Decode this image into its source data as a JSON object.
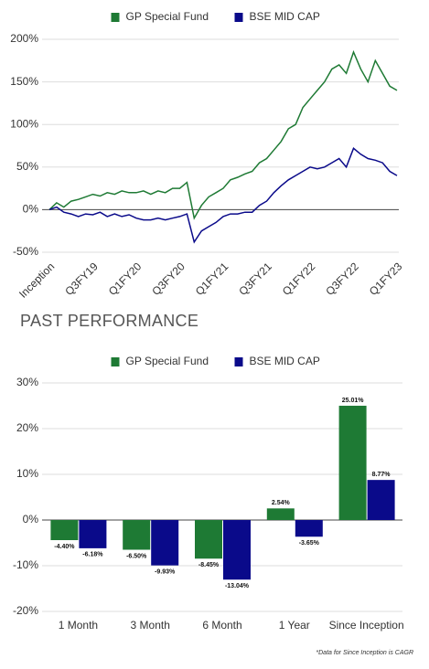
{
  "chart_data": [
    {
      "type": "line",
      "categories": [
        "Inception",
        null,
        null,
        null,
        null,
        null,
        "Q3FY19",
        null,
        null,
        null,
        null,
        null,
        "Q1FY20",
        null,
        null,
        null,
        null,
        null,
        "Q3FY20",
        null,
        null,
        null,
        null,
        null,
        "Q1FY21",
        null,
        null,
        null,
        null,
        null,
        "Q3FY21",
        null,
        null,
        null,
        null,
        null,
        "Q1FY22",
        null,
        null,
        null,
        null,
        null,
        "Q3FY22",
        null,
        null,
        null,
        null,
        null,
        "Q1FY23"
      ],
      "series": [
        {
          "name": "GP Special Fund",
          "color": "#1e7a34",
          "values": [
            0,
            8,
            3,
            10,
            12,
            15,
            18,
            16,
            20,
            18,
            22,
            20,
            20,
            22,
            18,
            22,
            20,
            25,
            25,
            32,
            -10,
            5,
            15,
            20,
            25,
            35,
            38,
            42,
            45,
            55,
            60,
            70,
            80,
            95,
            100,
            120,
            130,
            140,
            150,
            165,
            170,
            160,
            185,
            165,
            150,
            175,
            160,
            145,
            140
          ]
        },
        {
          "name": "BSE MID CAP",
          "color": "#0a0a8a",
          "values": [
            0,
            3,
            -3,
            -5,
            -8,
            -5,
            -6,
            -3,
            -8,
            -5,
            -8,
            -6,
            -10,
            -12,
            -12,
            -10,
            -12,
            -10,
            -8,
            -5,
            -38,
            -25,
            -20,
            -15,
            -8,
            -5,
            -5,
            -3,
            -3,
            5,
            10,
            20,
            28,
            35,
            40,
            45,
            50,
            48,
            50,
            55,
            60,
            50,
            72,
            65,
            60,
            58,
            55,
            45,
            40
          ]
        }
      ],
      "ylim": [
        -50,
        200
      ],
      "yticks": [
        {
          "value": -50,
          "label": "-50%"
        },
        {
          "value": 0,
          "label": "0%"
        },
        {
          "value": 50,
          "label": "50%"
        },
        {
          "value": 100,
          "label": "100%"
        },
        {
          "value": 150,
          "label": "150%"
        },
        {
          "value": 200,
          "label": "200%"
        }
      ],
      "grid": true,
      "legend": "top"
    },
    {
      "type": "bar",
      "categories": [
        "1 Month",
        "3 Month",
        "6 Month",
        "1 Year",
        "Since Inception"
      ],
      "series": [
        {
          "name": "GP Special Fund",
          "color": "#1e7a34",
          "values": [
            -4.4,
            -6.5,
            -8.45,
            2.54,
            25.01
          ],
          "value_labels": [
            "-4.40%",
            "-6.50%",
            "-8.45%",
            "2.54%",
            "25.01%"
          ]
        },
        {
          "name": "BSE MID CAP",
          "color": "#0a0a8a",
          "values": [
            -6.18,
            -9.93,
            -13.04,
            -3.65,
            8.77
          ],
          "value_labels": [
            "-6.18%",
            "-9.93%",
            "-13.04%",
            "-3.65%",
            "8.77%"
          ]
        }
      ],
      "ylim": [
        -20,
        30
      ],
      "yticks": [
        {
          "value": -20,
          "label": "-20%"
        },
        {
          "value": -10,
          "label": "-10%"
        },
        {
          "value": 0,
          "label": "0%"
        },
        {
          "value": 10,
          "label": "10%"
        },
        {
          "value": 20,
          "label": "20%"
        },
        {
          "value": 30,
          "label": "30%"
        }
      ],
      "grid": true,
      "legend": "top"
    }
  ],
  "heading": "PAST PERFORMANCE",
  "footnote": "*Data for Since Inception is CAGR"
}
